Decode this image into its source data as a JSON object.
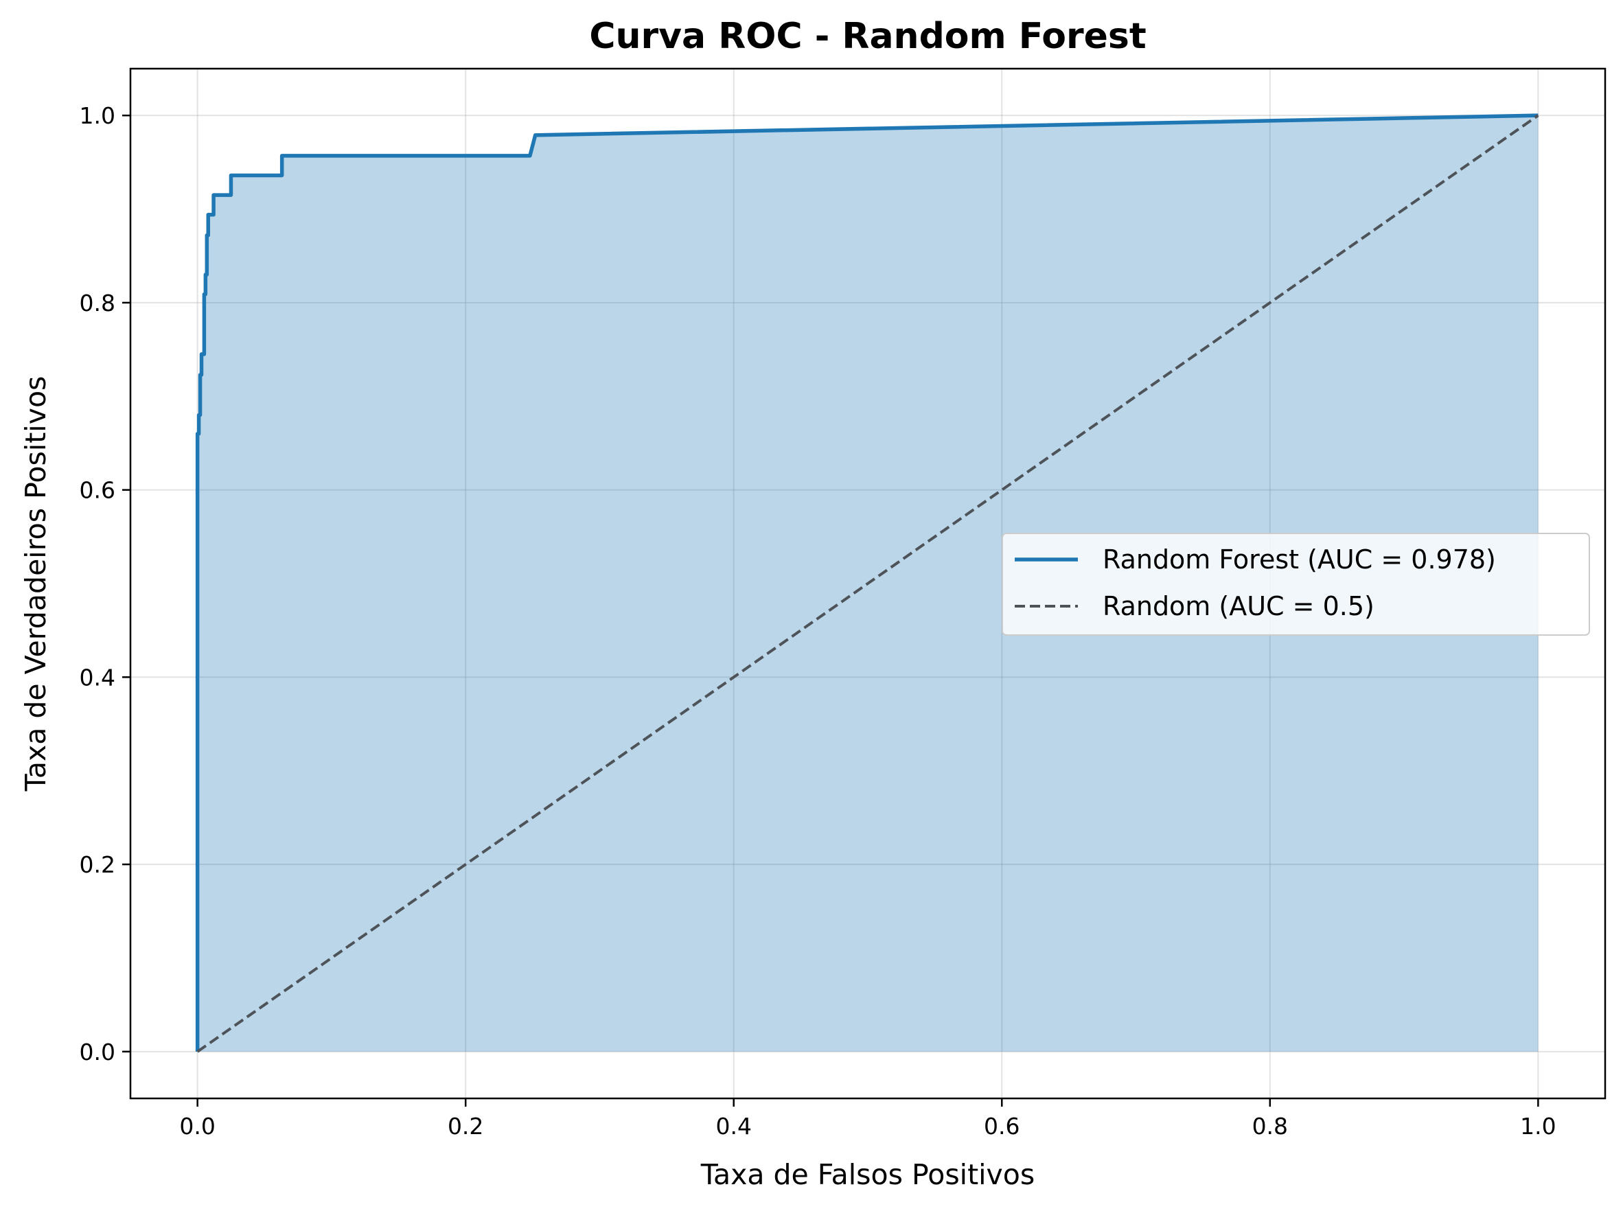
{
  "chart_data": {
    "type": "line",
    "title": "Curva ROC - Random Forest",
    "xlabel": "Taxa de Falsos Positivos",
    "ylabel": "Taxa de Verdadeiros Positivos",
    "xlim": [
      -0.05,
      1.05
    ],
    "ylim": [
      -0.05,
      1.05
    ],
    "grid": true,
    "legend_position": "center-right",
    "x_ticks": [
      "0.0",
      "0.2",
      "0.4",
      "0.6",
      "0.8",
      "1.0"
    ],
    "y_ticks": [
      "0.0",
      "0.2",
      "0.4",
      "0.6",
      "0.8",
      "1.0"
    ],
    "series": [
      {
        "name": "Random Forest (AUC = 0.978)",
        "color": "#1f77b4",
        "style": "solid",
        "fill": true,
        "x": [
          0.0,
          0.0,
          0.001,
          0.001,
          0.002,
          0.002,
          0.003,
          0.003,
          0.005,
          0.005,
          0.006,
          0.006,
          0.007,
          0.007,
          0.008,
          0.008,
          0.012,
          0.012,
          0.025,
          0.025,
          0.063,
          0.063,
          0.248,
          0.252,
          1.0
        ],
        "y": [
          0.0,
          0.66,
          0.66,
          0.68,
          0.68,
          0.723,
          0.723,
          0.745,
          0.745,
          0.809,
          0.809,
          0.83,
          0.83,
          0.872,
          0.872,
          0.894,
          0.894,
          0.915,
          0.915,
          0.936,
          0.936,
          0.957,
          0.957,
          0.979,
          1.0
        ]
      },
      {
        "name": "Random (AUC = 0.5)",
        "color": "#4d5358",
        "style": "dashed",
        "fill": false,
        "x": [
          0.0,
          1.0
        ],
        "y": [
          0.0,
          1.0
        ]
      }
    ]
  }
}
